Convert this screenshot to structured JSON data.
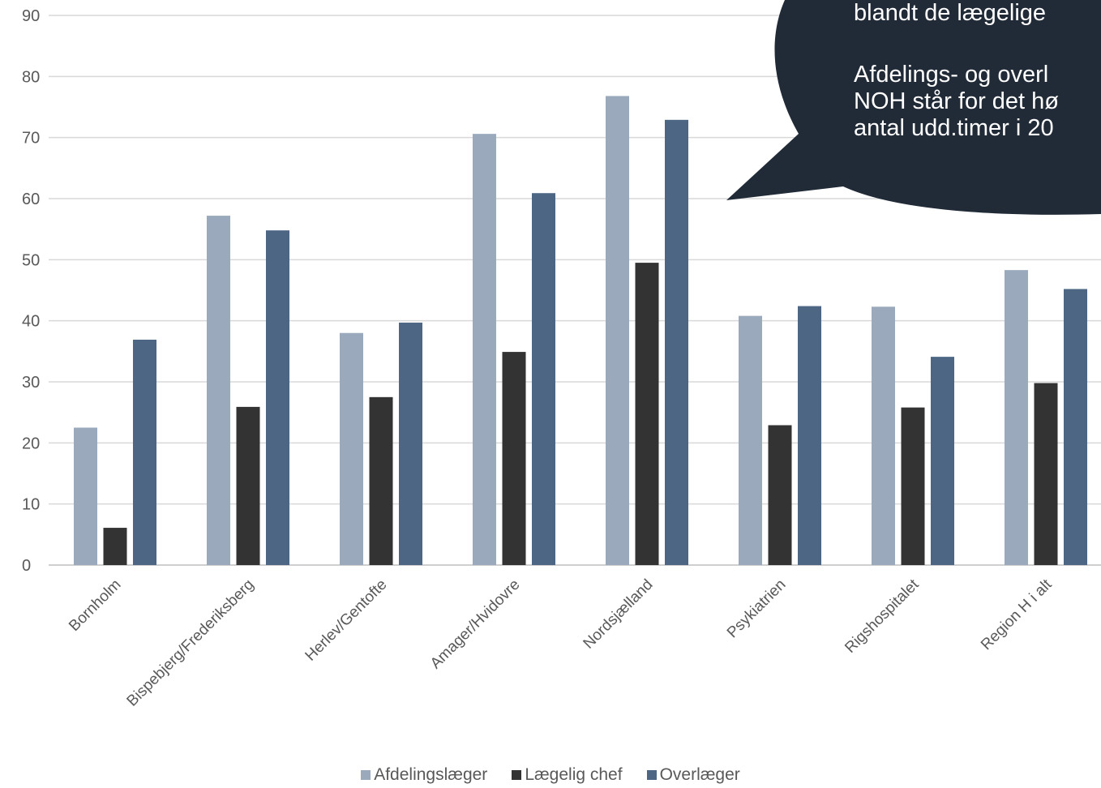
{
  "chart_data": {
    "type": "bar",
    "categories": [
      "Bornholm",
      "Bispebjerg/Frederiksberg",
      "Herlev/Gentofte",
      "Amager/Hvidovre",
      "Nordsjælland",
      "Psykiatrien",
      "Rigshospitalet",
      "Region H i alt"
    ],
    "series": [
      {
        "name": "Afdelingslæger",
        "color": "#9aa9bb",
        "values": [
          22.5,
          57.2,
          38.0,
          70.6,
          76.8,
          40.8,
          42.3,
          48.3
        ]
      },
      {
        "name": "Lægelig chef",
        "color": "#333333",
        "values": [
          6.1,
          25.9,
          27.5,
          34.9,
          49.5,
          22.9,
          25.8,
          29.8
        ]
      },
      {
        "name": "Overlæger",
        "color": "#4d6684",
        "values": [
          36.9,
          54.8,
          39.7,
          60.9,
          72.9,
          42.4,
          34.1,
          45.2
        ]
      }
    ],
    "ylim": [
      0,
      90
    ],
    "yticks": [
      0,
      10,
      20,
      30,
      40,
      50,
      60,
      70,
      80,
      90
    ],
    "grid": true,
    "legend": "bottom"
  },
  "callout": {
    "lines": [
      "blandt de lægelige",
      "",
      "Afdelings- og overl",
      "NOH står for det hø",
      "antal udd.timer i 20"
    ]
  }
}
